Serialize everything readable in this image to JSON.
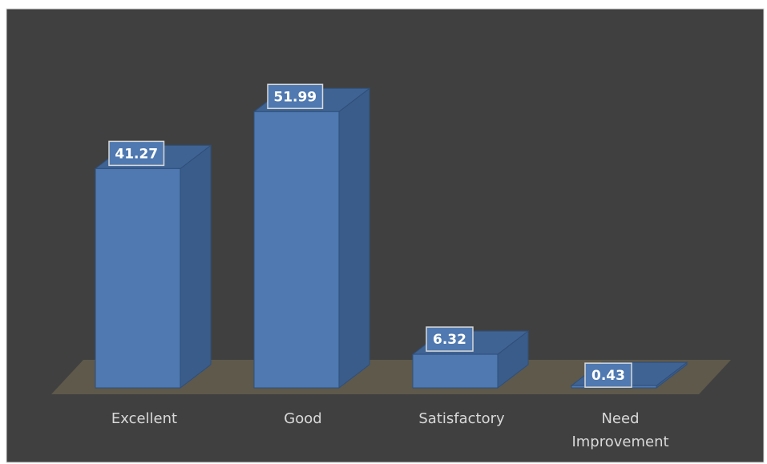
{
  "chart_data": {
    "type": "bar",
    "style": "3d-column",
    "categories": [
      "Excellent",
      "Good",
      "Satisfactory",
      "Need Improvement"
    ],
    "category_lines": [
      [
        "Excellent"
      ],
      [
        "Good"
      ],
      [
        "Satisfactory"
      ],
      [
        "Need",
        "Improvement"
      ]
    ],
    "values": [
      41.27,
      51.99,
      6.32,
      0.43
    ],
    "value_labels": [
      "41.27",
      "51.99",
      "6.32",
      "0.43"
    ],
    "ylim": [
      0,
      55
    ],
    "grid": false,
    "legend": "none",
    "title": "",
    "xlabel": "",
    "ylabel": ""
  },
  "colors": {
    "background": "#404040",
    "frame": "#d9d9d9",
    "floor": "#5e594b",
    "bar_front": "#4f79b0",
    "bar_top": "#3f6393",
    "bar_side": "#3a5c8a",
    "bar_edge": "#2f4f7a",
    "label_box_border": "#d9d9d9",
    "label_text": "#ffffff",
    "axis_text": "#d9d9d9"
  }
}
